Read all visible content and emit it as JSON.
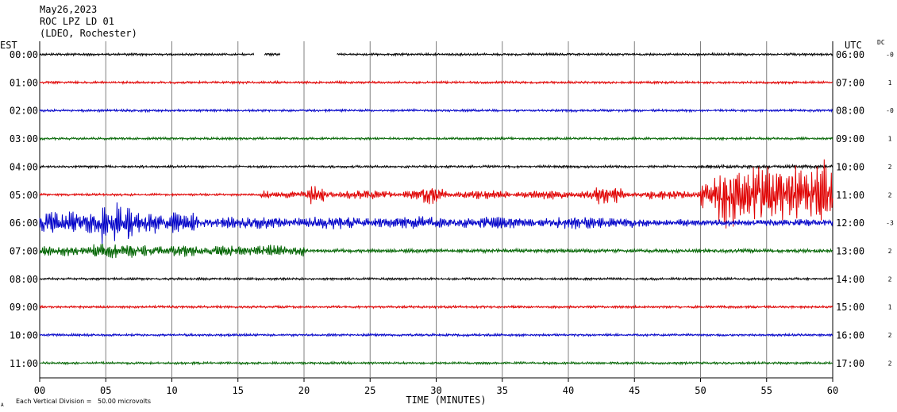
{
  "header": {
    "date": "May26,2023",
    "station": "ROC LPZ LD 01",
    "network": "(LDEO, Rochester)"
  },
  "labels": {
    "left_zone": "EST",
    "right_zone": "UTC",
    "dc_header": "DC",
    "xlabel": "TIME (MINUTES)",
    "scale_note": "Each Vertical Division =   50.00 microvolts",
    "scale_mark": "A"
  },
  "chart_data": {
    "type": "line",
    "subtype": "helicorder",
    "x_ticks": [
      "00",
      "05",
      "10",
      "15",
      "20",
      "25",
      "30",
      "35",
      "40",
      "45",
      "50",
      "55",
      "60"
    ],
    "xlim": [
      0,
      60
    ],
    "grid": true,
    "traces": [
      {
        "est": "00:00",
        "utc": "06:00",
        "dc": "-0",
        "color": "#000000",
        "gaps": [
          [
            16.2,
            17.0
          ],
          [
            18.2,
            22.5
          ]
        ],
        "events": []
      },
      {
        "est": "01:00",
        "utc": "07:00",
        "dc": "1",
        "color": "#e00000",
        "gaps": [],
        "events": []
      },
      {
        "est": "02:00",
        "utc": "08:00",
        "dc": "-0",
        "color": "#0000c8",
        "gaps": [],
        "events": []
      },
      {
        "est": "03:00",
        "utc": "09:00",
        "dc": "1",
        "color": "#006400",
        "gaps": [],
        "events": []
      },
      {
        "est": "04:00",
        "utc": "10:00",
        "dc": "2",
        "color": "#000000",
        "gaps": [],
        "events": []
      },
      {
        "est": "05:00",
        "utc": "11:00",
        "dc": "2",
        "color": "#e00000",
        "gaps": [],
        "events": [
          "teleseism-onset-17min",
          "large-arrivals-50to60min"
        ]
      },
      {
        "est": "06:00",
        "utc": "12:00",
        "dc": "-3",
        "color": "#0000c8",
        "gaps": [],
        "events": [
          "coda-0to60min"
        ]
      },
      {
        "est": "07:00",
        "utc": "13:00",
        "dc": "2",
        "color": "#006400",
        "gaps": [],
        "events": [
          "coda-0to20min"
        ]
      },
      {
        "est": "08:00",
        "utc": "14:00",
        "dc": "2",
        "color": "#000000",
        "gaps": [],
        "events": []
      },
      {
        "est": "09:00",
        "utc": "15:00",
        "dc": "1",
        "color": "#e00000",
        "gaps": [],
        "events": []
      },
      {
        "est": "10:00",
        "utc": "16:00",
        "dc": "2",
        "color": "#0000c8",
        "gaps": [],
        "events": []
      },
      {
        "est": "11:00",
        "utc": "17:00",
        "dc": "2",
        "color": "#006400",
        "gaps": [],
        "events": []
      }
    ]
  }
}
